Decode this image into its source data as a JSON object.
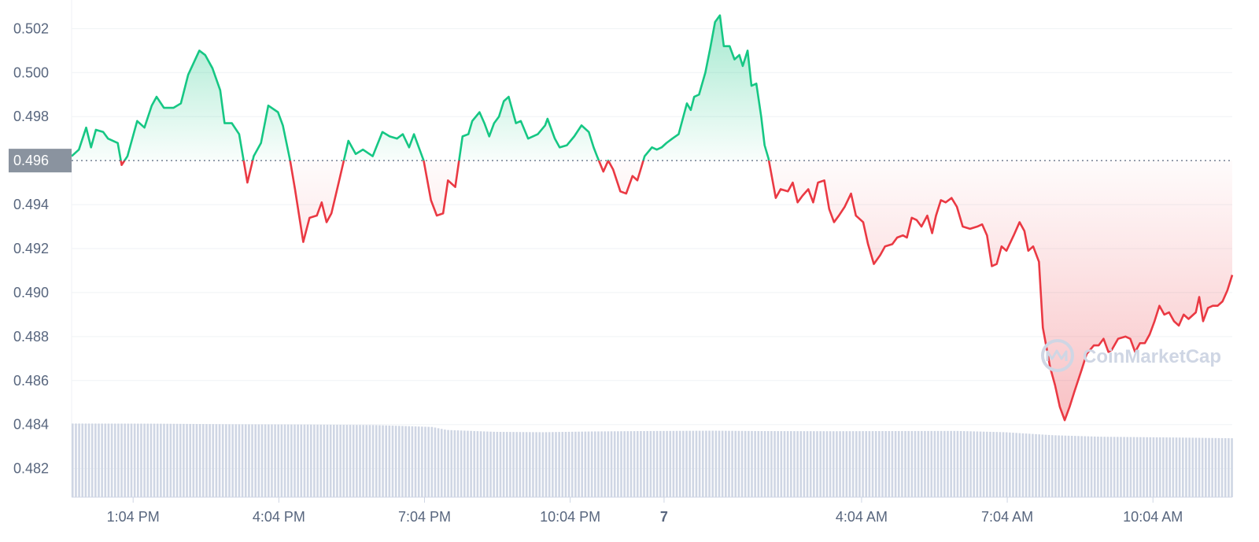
{
  "chart_data": {
    "type": "line",
    "baseline_value": 0.496,
    "baseline_label": "0.496",
    "ylim": [
      0.4807,
      0.5033
    ],
    "y_ticks": [
      {
        "value": 0.502,
        "label": "0.502"
      },
      {
        "value": 0.5,
        "label": "0.500"
      },
      {
        "value": 0.498,
        "label": "0.498"
      },
      {
        "value": 0.494,
        "label": "0.494"
      },
      {
        "value": 0.492,
        "label": "0.492"
      },
      {
        "value": 0.49,
        "label": "0.490"
      },
      {
        "value": 0.488,
        "label": "0.488"
      },
      {
        "value": 0.486,
        "label": "0.486"
      },
      {
        "value": 0.484,
        "label": "0.484"
      },
      {
        "value": 0.482,
        "label": "0.482"
      }
    ],
    "x_range": [
      11.8,
      35.7
    ],
    "x_ticks": [
      {
        "value": 13.067,
        "label": "1:04 PM",
        "bold": false
      },
      {
        "value": 16.067,
        "label": "4:04 PM",
        "bold": false
      },
      {
        "value": 19.067,
        "label": "7:04 PM",
        "bold": false
      },
      {
        "value": 22.067,
        "label": "10:04 PM",
        "bold": false
      },
      {
        "value": 24.0,
        "label": "7",
        "bold": true
      },
      {
        "value": 28.067,
        "label": "4:04 AM",
        "bold": false
      },
      {
        "value": 31.067,
        "label": "7:04 AM",
        "bold": false
      },
      {
        "value": 34.067,
        "label": "10:04 AM",
        "bold": false
      }
    ],
    "price": [
      [
        11.8,
        0.4962
      ],
      [
        11.95,
        0.4965
      ],
      [
        12.1,
        0.4975
      ],
      [
        12.2,
        0.4966
      ],
      [
        12.3,
        0.4974
      ],
      [
        12.45,
        0.4973
      ],
      [
        12.55,
        0.497
      ],
      [
        12.75,
        0.4968
      ],
      [
        12.83,
        0.4958
      ],
      [
        12.95,
        0.4962
      ],
      [
        13.15,
        0.4978
      ],
      [
        13.3,
        0.4975
      ],
      [
        13.45,
        0.4985
      ],
      [
        13.55,
        0.4989
      ],
      [
        13.7,
        0.4984
      ],
      [
        13.9,
        0.4984
      ],
      [
        14.05,
        0.4986
      ],
      [
        14.2,
        0.4999
      ],
      [
        14.43,
        0.501
      ],
      [
        14.55,
        0.5008
      ],
      [
        14.7,
        0.5002
      ],
      [
        14.86,
        0.4992
      ],
      [
        14.95,
        0.4977
      ],
      [
        15.1,
        0.4977
      ],
      [
        15.25,
        0.4972
      ],
      [
        15.42,
        0.495
      ],
      [
        15.55,
        0.4962
      ],
      [
        15.7,
        0.4968
      ],
      [
        15.85,
        0.4985
      ],
      [
        16.05,
        0.4982
      ],
      [
        16.15,
        0.4976
      ],
      [
        16.3,
        0.496
      ],
      [
        16.4,
        0.4947
      ],
      [
        16.57,
        0.4923
      ],
      [
        16.7,
        0.4934
      ],
      [
        16.85,
        0.4935
      ],
      [
        16.95,
        0.4941
      ],
      [
        17.05,
        0.4932
      ],
      [
        17.15,
        0.4936
      ],
      [
        17.3,
        0.495
      ],
      [
        17.5,
        0.4969
      ],
      [
        17.65,
        0.4963
      ],
      [
        17.8,
        0.4965
      ],
      [
        18.0,
        0.4962
      ],
      [
        18.2,
        0.4973
      ],
      [
        18.35,
        0.4971
      ],
      [
        18.5,
        0.497
      ],
      [
        18.62,
        0.4972
      ],
      [
        18.75,
        0.4966
      ],
      [
        18.85,
        0.4972
      ],
      [
        19.05,
        0.496
      ],
      [
        19.2,
        0.4942
      ],
      [
        19.32,
        0.4935
      ],
      [
        19.45,
        0.4936
      ],
      [
        19.55,
        0.4951
      ],
      [
        19.7,
        0.4948
      ],
      [
        19.85,
        0.4971
      ],
      [
        19.97,
        0.4972
      ],
      [
        20.05,
        0.4978
      ],
      [
        20.2,
        0.4982
      ],
      [
        20.3,
        0.4977
      ],
      [
        20.4,
        0.4971
      ],
      [
        20.5,
        0.4977
      ],
      [
        20.6,
        0.498
      ],
      [
        20.7,
        0.4987
      ],
      [
        20.8,
        0.4989
      ],
      [
        20.95,
        0.4977
      ],
      [
        21.05,
        0.4978
      ],
      [
        21.2,
        0.497
      ],
      [
        21.4,
        0.4972
      ],
      [
        21.55,
        0.4976
      ],
      [
        21.6,
        0.4979
      ],
      [
        21.75,
        0.497
      ],
      [
        21.85,
        0.4966
      ],
      [
        22.0,
        0.4967
      ],
      [
        22.15,
        0.4971
      ],
      [
        22.3,
        0.4976
      ],
      [
        22.45,
        0.4973
      ],
      [
        22.55,
        0.4966
      ],
      [
        22.62,
        0.4962
      ],
      [
        22.75,
        0.4955
      ],
      [
        22.85,
        0.496
      ],
      [
        22.95,
        0.4956
      ],
      [
        23.1,
        0.4946
      ],
      [
        23.22,
        0.4945
      ],
      [
        23.35,
        0.4953
      ],
      [
        23.45,
        0.4951
      ],
      [
        23.6,
        0.4962
      ],
      [
        23.75,
        0.4966
      ],
      [
        23.85,
        0.4965
      ],
      [
        23.95,
        0.4966
      ],
      [
        24.05,
        0.4968
      ],
      [
        24.17,
        0.497
      ],
      [
        24.3,
        0.4972
      ],
      [
        24.47,
        0.4986
      ],
      [
        24.55,
        0.4983
      ],
      [
        24.62,
        0.4989
      ],
      [
        24.72,
        0.499
      ],
      [
        24.85,
        0.5
      ],
      [
        24.95,
        0.5011
      ],
      [
        25.05,
        0.5023
      ],
      [
        25.15,
        0.5026
      ],
      [
        25.23,
        0.5012
      ],
      [
        25.35,
        0.5012
      ],
      [
        25.45,
        0.5006
      ],
      [
        25.55,
        0.5008
      ],
      [
        25.62,
        0.5003
      ],
      [
        25.72,
        0.501
      ],
      [
        25.8,
        0.4994
      ],
      [
        25.9,
        0.4995
      ],
      [
        26.0,
        0.498
      ],
      [
        26.07,
        0.4967
      ],
      [
        26.15,
        0.4961
      ],
      [
        26.3,
        0.4943
      ],
      [
        26.4,
        0.4947
      ],
      [
        26.55,
        0.4946
      ],
      [
        26.65,
        0.495
      ],
      [
        26.75,
        0.4941
      ],
      [
        26.85,
        0.4944
      ],
      [
        26.97,
        0.4947
      ],
      [
        27.07,
        0.4941
      ],
      [
        27.17,
        0.495
      ],
      [
        27.3,
        0.4951
      ],
      [
        27.4,
        0.4938
      ],
      [
        27.5,
        0.4932
      ],
      [
        27.6,
        0.4935
      ],
      [
        27.72,
        0.4939
      ],
      [
        27.85,
        0.4945
      ],
      [
        27.95,
        0.4935
      ],
      [
        28.1,
        0.4932
      ],
      [
        28.2,
        0.4922
      ],
      [
        28.32,
        0.4913
      ],
      [
        28.45,
        0.4917
      ],
      [
        28.55,
        0.4921
      ],
      [
        28.7,
        0.4922
      ],
      [
        28.8,
        0.4925
      ],
      [
        28.92,
        0.4926
      ],
      [
        29.0,
        0.4925
      ],
      [
        29.1,
        0.4934
      ],
      [
        29.2,
        0.4933
      ],
      [
        29.3,
        0.493
      ],
      [
        29.42,
        0.4935
      ],
      [
        29.52,
        0.4927
      ],
      [
        29.6,
        0.4935
      ],
      [
        29.7,
        0.4942
      ],
      [
        29.8,
        0.4941
      ],
      [
        29.92,
        0.4943
      ],
      [
        30.03,
        0.4939
      ],
      [
        30.15,
        0.493
      ],
      [
        30.3,
        0.4929
      ],
      [
        30.45,
        0.493
      ],
      [
        30.55,
        0.4931
      ],
      [
        30.65,
        0.4926
      ],
      [
        30.75,
        0.4912
      ],
      [
        30.85,
        0.4913
      ],
      [
        30.95,
        0.4921
      ],
      [
        31.05,
        0.4919
      ],
      [
        31.2,
        0.4926
      ],
      [
        31.32,
        0.4932
      ],
      [
        31.42,
        0.4928
      ],
      [
        31.5,
        0.4919
      ],
      [
        31.6,
        0.4921
      ],
      [
        31.72,
        0.4914
      ],
      [
        31.8,
        0.4884
      ],
      [
        31.95,
        0.4866
      ],
      [
        32.05,
        0.4858
      ],
      [
        32.15,
        0.4848
      ],
      [
        32.25,
        0.4842
      ],
      [
        32.35,
        0.4848
      ],
      [
        32.45,
        0.4855
      ],
      [
        32.6,
        0.4865
      ],
      [
        32.7,
        0.4872
      ],
      [
        32.85,
        0.4876
      ],
      [
        32.95,
        0.4876
      ],
      [
        33.05,
        0.4879
      ],
      [
        33.15,
        0.4873
      ],
      [
        33.22,
        0.4874
      ],
      [
        33.35,
        0.4879
      ],
      [
        33.5,
        0.488
      ],
      [
        33.6,
        0.4879
      ],
      [
        33.7,
        0.4873
      ],
      [
        33.8,
        0.4877
      ],
      [
        33.9,
        0.4877
      ],
      [
        34.0,
        0.4881
      ],
      [
        34.1,
        0.4887
      ],
      [
        34.2,
        0.4894
      ],
      [
        34.3,
        0.489
      ],
      [
        34.4,
        0.4891
      ],
      [
        34.5,
        0.4887
      ],
      [
        34.6,
        0.4885
      ],
      [
        34.7,
        0.489
      ],
      [
        34.8,
        0.4888
      ],
      [
        34.95,
        0.4891
      ],
      [
        35.02,
        0.4898
      ],
      [
        35.1,
        0.4887
      ],
      [
        35.2,
        0.4893
      ],
      [
        35.3,
        0.4894
      ],
      [
        35.4,
        0.4894
      ],
      [
        35.5,
        0.4896
      ],
      [
        35.6,
        0.4901
      ],
      [
        35.7,
        0.4908
      ]
    ],
    "volume": [
      [
        11.8,
        0.975
      ],
      [
        13.5,
        0.973
      ],
      [
        15.0,
        0.966
      ],
      [
        16.5,
        0.962
      ],
      [
        18.0,
        0.955
      ],
      [
        19.2,
        0.93
      ],
      [
        19.5,
        0.89
      ],
      [
        20.5,
        0.865
      ],
      [
        21.5,
        0.86
      ],
      [
        22.5,
        0.87
      ],
      [
        23.5,
        0.875
      ],
      [
        25.0,
        0.88
      ],
      [
        26.0,
        0.875
      ],
      [
        27.5,
        0.873
      ],
      [
        28.5,
        0.875
      ],
      [
        30.0,
        0.877
      ],
      [
        31.0,
        0.86
      ],
      [
        32.0,
        0.82
      ],
      [
        33.0,
        0.8
      ],
      [
        34.5,
        0.79
      ],
      [
        35.7,
        0.78
      ]
    ],
    "up_color": "#16c784",
    "down_color": "#ea3943",
    "volume_color": "#cfd6e4",
    "grid": true,
    "watermark": "CoinMarketCap"
  }
}
